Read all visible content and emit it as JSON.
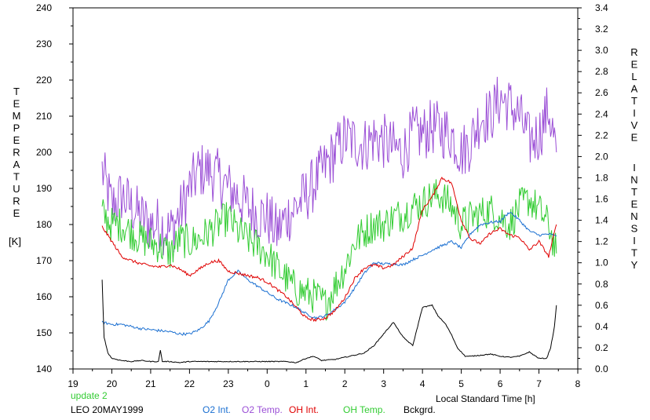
{
  "chart_data": {
    "type": "line",
    "xlabel": "Local Standard Time [h]",
    "x_ticks": [
      "19",
      "20",
      "21",
      "22",
      "23",
      "0",
      "1",
      "2",
      "3",
      "4",
      "5",
      "6",
      "7",
      "8"
    ],
    "xlim": [
      19,
      32
    ],
    "ylabel_left_letters": [
      "T",
      "E",
      "M",
      "P",
      "E",
      "R",
      "A",
      "T",
      "U",
      "R",
      "E"
    ],
    "ylabel_left_unit": "[K]",
    "ylim_left": [
      140,
      240
    ],
    "y_ticks_left": [
      "140",
      "150",
      "160",
      "170",
      "180",
      "190",
      "200",
      "210",
      "220",
      "230",
      "240"
    ],
    "ylabel_right_letters_1": [
      "R",
      "E",
      "L",
      "A",
      "T",
      "I",
      "V",
      "E"
    ],
    "ylabel_right_letters_2": [
      "I",
      "N",
      "T",
      "E",
      "N",
      "S",
      "I",
      "T",
      "Y"
    ],
    "ylim_right": [
      0,
      3.4
    ],
    "y_ticks_right": [
      "0.0",
      "0.2",
      "0.4",
      "0.6",
      "0.8",
      "1.0",
      "1.2",
      "1.4",
      "1.6",
      "1.8",
      "2.0",
      "2.2",
      "2.4",
      "2.6",
      "2.8",
      "3.0",
      "3.2",
      "3.4"
    ],
    "grid": false,
    "notes": {
      "update": "update 2",
      "station_date": "LEO 20MAY1999"
    },
    "legend": [
      {
        "label": "O2 Int.",
        "color": "#1a6fd1"
      },
      {
        "label": "O2 Temp.",
        "color": "#9b4fd6"
      },
      {
        "label": "OH Int.",
        "color": "#e00000"
      },
      {
        "label": "OH Temp.",
        "color": "#33cc33"
      },
      {
        "label": "Bckgrd.",
        "color": "#000000"
      }
    ],
    "series": [
      {
        "key": "o2_temp",
        "axis": "left",
        "color": "#9b4fd6",
        "noise": 8,
        "x": [
          19.75,
          20.0,
          20.25,
          20.5,
          20.75,
          21.0,
          21.25,
          21.5,
          21.75,
          22.0,
          22.25,
          22.5,
          22.75,
          23.0,
          23.25,
          23.5,
          23.75,
          24.0,
          24.25,
          24.5,
          24.75,
          25.0,
          25.25,
          25.5,
          25.75,
          26.0,
          26.25,
          26.5,
          26.75,
          27.0,
          27.25,
          27.5,
          27.75,
          28.0,
          28.25,
          28.5,
          28.75,
          29.0,
          29.25,
          29.5,
          29.75,
          30.0,
          30.25,
          30.5,
          30.75,
          31.0,
          31.25,
          31.45
        ],
        "y": [
          195,
          185,
          188,
          185,
          182,
          180,
          180,
          178,
          183,
          190,
          195,
          195,
          193,
          190,
          188,
          185,
          183,
          182,
          178,
          182,
          185,
          188,
          192,
          196,
          200,
          204,
          203,
          202,
          204,
          203,
          201,
          200,
          205,
          205,
          207,
          206,
          205,
          200,
          203,
          210,
          210,
          215,
          213,
          210,
          203,
          205,
          212,
          200
        ]
      },
      {
        "key": "oh_temp",
        "axis": "left",
        "color": "#33cc33",
        "noise": 5,
        "x": [
          19.75,
          20.0,
          20.25,
          20.5,
          20.75,
          21.0,
          21.25,
          21.5,
          21.75,
          22.0,
          22.25,
          22.5,
          22.75,
          23.0,
          23.25,
          23.5,
          23.75,
          24.0,
          24.25,
          24.5,
          24.75,
          25.0,
          25.25,
          25.5,
          25.75,
          26.0,
          26.25,
          26.5,
          26.75,
          27.0,
          27.25,
          27.5,
          27.75,
          28.0,
          28.25,
          28.5,
          28.75,
          29.0,
          29.25,
          29.5,
          29.75,
          30.0,
          30.25,
          30.5,
          30.75,
          31.0,
          31.25,
          31.45
        ],
        "y": [
          183,
          180,
          180,
          178,
          176,
          175,
          174,
          172,
          176,
          175,
          176,
          178,
          180,
          182,
          178,
          176,
          174,
          172,
          168,
          165,
          162,
          161,
          160,
          158,
          163,
          168,
          175,
          178,
          180,
          180,
          182,
          183,
          185,
          186,
          188,
          188,
          185,
          180,
          182,
          183,
          184,
          182,
          180,
          185,
          187,
          184,
          180,
          172
        ]
      },
      {
        "key": "o2_int",
        "axis": "right",
        "color": "#1a6fd1",
        "noise": 0.012,
        "x": [
          19.75,
          20.0,
          20.25,
          20.5,
          20.75,
          21.0,
          21.25,
          21.5,
          21.75,
          22.0,
          22.25,
          22.5,
          22.75,
          23.0,
          23.25,
          23.5,
          23.75,
          24.0,
          24.25,
          24.5,
          24.75,
          25.0,
          25.25,
          25.5,
          25.75,
          26.0,
          26.25,
          26.5,
          26.75,
          27.0,
          27.25,
          27.5,
          27.75,
          28.0,
          28.25,
          28.5,
          28.75,
          29.0,
          29.25,
          29.5,
          29.75,
          30.0,
          30.25,
          30.5,
          30.75,
          31.0,
          31.25,
          31.45
        ],
        "y": [
          0.44,
          0.42,
          0.42,
          0.4,
          0.38,
          0.37,
          0.36,
          0.35,
          0.33,
          0.33,
          0.37,
          0.45,
          0.62,
          0.84,
          0.92,
          0.84,
          0.78,
          0.72,
          0.66,
          0.62,
          0.58,
          0.52,
          0.48,
          0.5,
          0.56,
          0.63,
          0.76,
          0.9,
          1.0,
          0.99,
          0.99,
          0.98,
          1.03,
          1.07,
          1.12,
          1.16,
          1.2,
          1.14,
          1.28,
          1.36,
          1.38,
          1.39,
          1.48,
          1.4,
          1.3,
          1.26,
          1.27,
          1.25
        ]
      },
      {
        "key": "oh_int",
        "axis": "right",
        "color": "#e00000",
        "noise": 0.014,
        "x": [
          19.75,
          20.0,
          20.25,
          20.5,
          20.75,
          21.0,
          21.25,
          21.5,
          21.75,
          22.0,
          22.25,
          22.5,
          22.75,
          23.0,
          23.25,
          23.5,
          23.75,
          24.0,
          24.25,
          24.5,
          24.75,
          25.0,
          25.25,
          25.5,
          25.75,
          26.0,
          26.25,
          26.5,
          26.75,
          27.0,
          27.25,
          27.5,
          27.75,
          28.0,
          28.25,
          28.5,
          28.75,
          29.0,
          29.25,
          29.5,
          29.75,
          30.0,
          30.25,
          30.5,
          30.75,
          31.0,
          31.25,
          31.45
        ],
        "y": [
          1.34,
          1.2,
          1.06,
          1.02,
          0.99,
          0.97,
          0.96,
          0.98,
          0.94,
          0.88,
          0.94,
          1.0,
          1.02,
          0.92,
          0.9,
          0.88,
          0.86,
          0.82,
          0.75,
          0.68,
          0.58,
          0.48,
          0.46,
          0.48,
          0.55,
          0.67,
          0.85,
          0.95,
          0.98,
          0.95,
          0.98,
          1.06,
          1.14,
          1.5,
          1.62,
          1.8,
          1.75,
          1.4,
          1.22,
          1.18,
          1.28,
          1.32,
          1.26,
          1.24,
          1.12,
          1.2,
          1.06,
          1.36
        ]
      },
      {
        "key": "bckgrd",
        "axis": "right",
        "color": "#000000",
        "noise": 0.004,
        "x": [
          19.75,
          19.8,
          19.9,
          20.0,
          20.25,
          20.5,
          20.75,
          21.0,
          21.2,
          21.25,
          21.3,
          21.5,
          21.75,
          22.0,
          22.5,
          23.0,
          23.5,
          24.0,
          24.5,
          24.75,
          25.0,
          25.2,
          25.4,
          25.75,
          26.0,
          26.25,
          26.5,
          26.75,
          27.0,
          27.25,
          27.5,
          27.75,
          28.0,
          28.25,
          28.4,
          28.6,
          28.75,
          28.9,
          29.1,
          29.25,
          29.5,
          29.75,
          30.0,
          30.25,
          30.5,
          30.75,
          31.0,
          31.2,
          31.3,
          31.4,
          31.45
        ],
        "y": [
          0.84,
          0.3,
          0.15,
          0.1,
          0.08,
          0.07,
          0.08,
          0.07,
          0.07,
          0.18,
          0.07,
          0.07,
          0.06,
          0.07,
          0.07,
          0.07,
          0.07,
          0.07,
          0.07,
          0.06,
          0.1,
          0.12,
          0.08,
          0.09,
          0.11,
          0.13,
          0.15,
          0.22,
          0.33,
          0.44,
          0.3,
          0.22,
          0.58,
          0.6,
          0.5,
          0.42,
          0.32,
          0.2,
          0.12,
          0.12,
          0.13,
          0.14,
          0.12,
          0.11,
          0.12,
          0.16,
          0.1,
          0.1,
          0.2,
          0.4,
          0.6
        ]
      }
    ]
  }
}
